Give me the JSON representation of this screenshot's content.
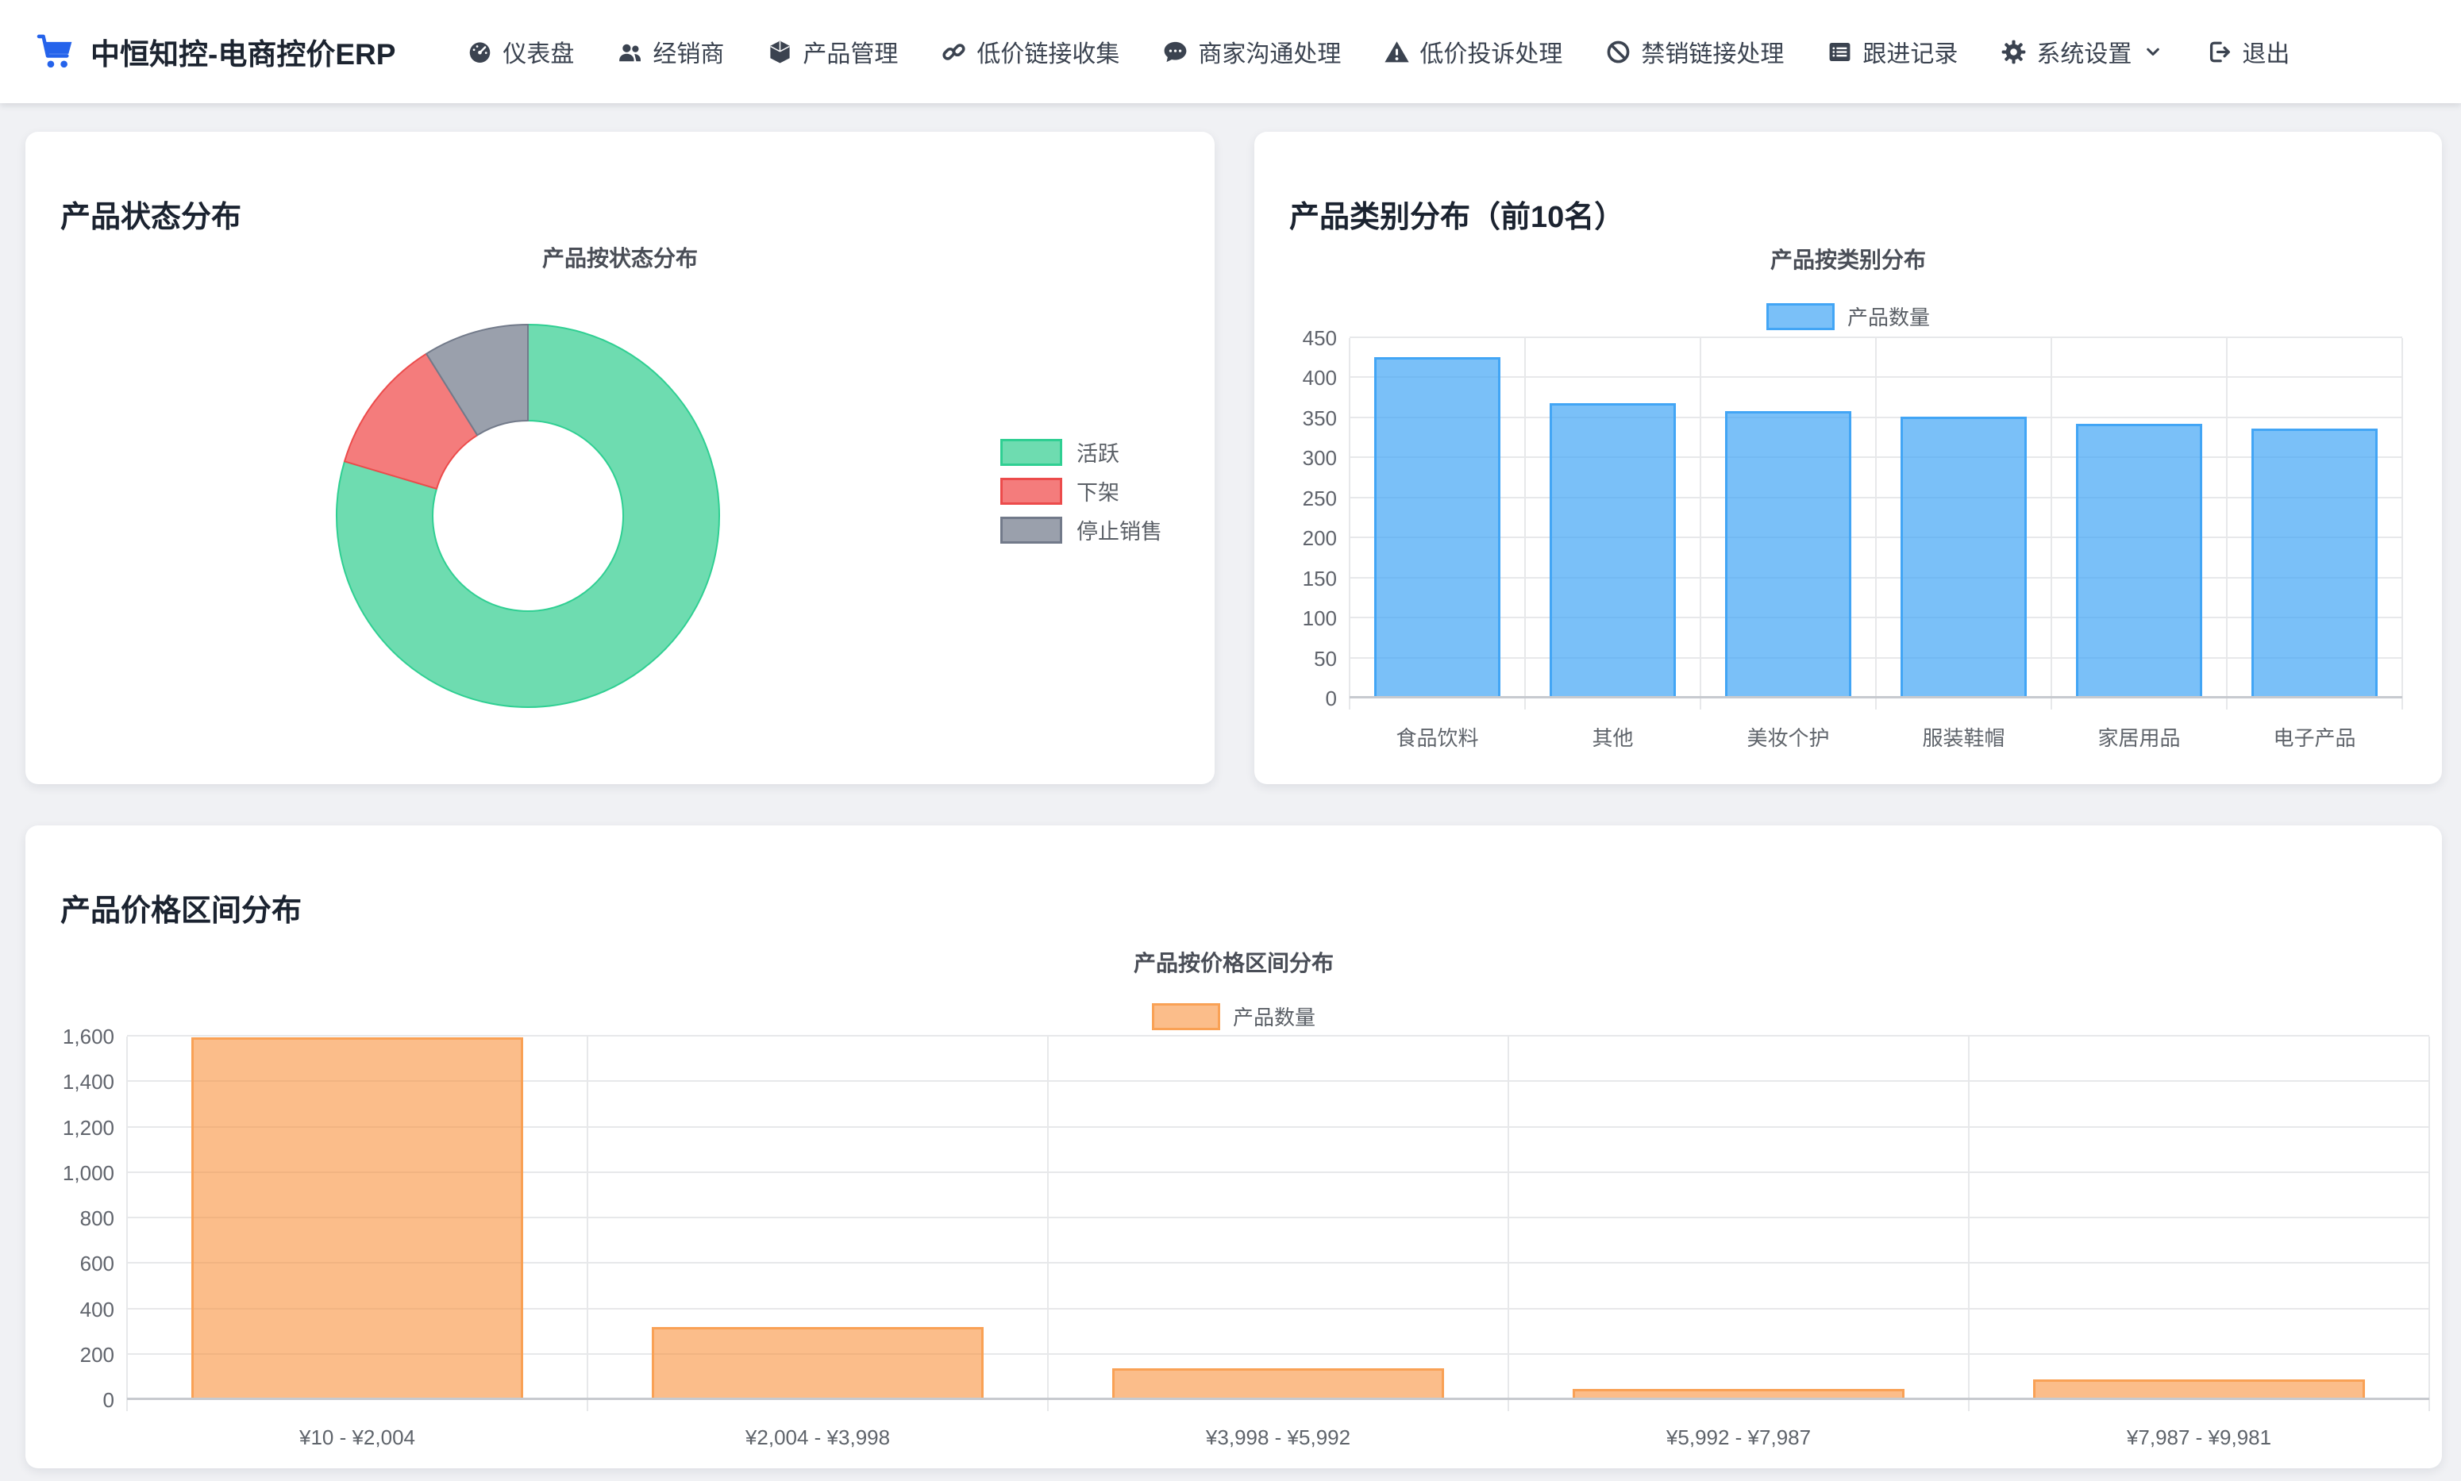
{
  "navbar": {
    "brand": {
      "title": "中恒知控-电商控价ERP",
      "logo_icon": "cart-icon",
      "logo_color": "#2563eb"
    },
    "items": [
      {
        "name": "dashboard",
        "label": "仪表盘",
        "icon": "gauge-icon"
      },
      {
        "name": "dealers",
        "label": "经销商",
        "icon": "users-icon"
      },
      {
        "name": "product-management",
        "label": "产品管理",
        "icon": "cube-icon"
      },
      {
        "name": "low-price-link-collection",
        "label": "低价链接收集",
        "icon": "link-icon"
      },
      {
        "name": "merchant-communication",
        "label": "商家沟通处理",
        "icon": "comment-icon"
      },
      {
        "name": "low-price-complaint",
        "label": "低价投诉处理",
        "icon": "warning-icon"
      },
      {
        "name": "banned-link-handling",
        "label": "禁销链接处理",
        "icon": "ban-icon"
      },
      {
        "name": "follow-up-records",
        "label": "跟进记录",
        "icon": "list-icon"
      },
      {
        "name": "system-settings",
        "label": "系统设置",
        "icon": "gear-icon",
        "has_dropdown": true,
        "dropdown_icon": "chevron-down-icon"
      },
      {
        "name": "logout",
        "label": "退出",
        "icon": "logout-icon"
      }
    ]
  },
  "cards": {
    "status": {
      "title": "产品状态分布"
    },
    "category": {
      "title": "产品类别分布（前10名）"
    },
    "price": {
      "title": "产品价格区间分布"
    }
  },
  "chart_data": [
    {
      "id": "status_donut",
      "type": "pie",
      "subtype": "donut",
      "title": "产品按状态分布",
      "labels": [
        "活跃",
        "下架",
        "停止销售"
      ],
      "values_percent": [
        79.6,
        11.5,
        8.9
      ],
      "colors": [
        "#6edcb0",
        "#f47c7c",
        "#9aa0ac"
      ],
      "border_colors": [
        "#2fcf92",
        "#ec4b4b",
        "#727a8a"
      ],
      "legend_position": "right"
    },
    {
      "id": "category_bar",
      "type": "bar",
      "title": "产品按类别分布",
      "legend": "产品数量",
      "categories": [
        "食品饮料",
        "其他",
        "美妆个护",
        "服装鞋帽",
        "家居用品",
        "电子产品"
      ],
      "values": [
        426,
        369,
        359,
        352,
        343,
        337
      ],
      "ylim": [
        0,
        450
      ],
      "ytick_step": 50,
      "yticks": [
        "0",
        "50",
        "100",
        "150",
        "200",
        "250",
        "300",
        "350",
        "400",
        "450"
      ],
      "bar_color": "rgba(66,165,245,0.70)",
      "bar_border": "#42a5f5",
      "grid": true,
      "legend_position": "top"
    },
    {
      "id": "price_bar",
      "type": "bar",
      "title": "产品按价格区间分布",
      "legend": "产品数量",
      "categories": [
        "¥10 - ¥2,004",
        "¥2,004 - ¥3,998",
        "¥3,998 - ¥5,992",
        "¥5,992 - ¥7,987",
        "¥7,987 - ¥9,981"
      ],
      "values": [
        1597,
        321,
        140,
        48,
        90
      ],
      "ylim": [
        0,
        1600
      ],
      "ytick_step": 200,
      "yticks": [
        "0",
        "200",
        "400",
        "600",
        "800",
        "1,000",
        "1,200",
        "1,400",
        "1,600"
      ],
      "bar_color": "rgba(249,145,60,0.60)",
      "bar_border": "#f9a155",
      "grid": true,
      "legend_position": "top"
    }
  ]
}
